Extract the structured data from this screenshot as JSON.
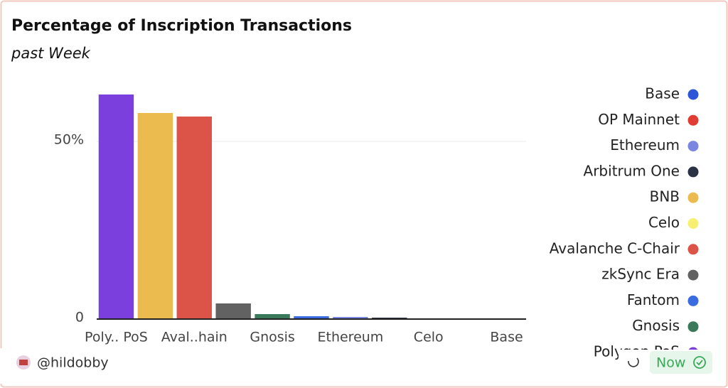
{
  "chart_data": {
    "type": "bar",
    "title": "Percentage of Inscription Transactions",
    "subtitle": "past Week",
    "categories": [
      "Poly.. PoS",
      null,
      "Aval..hain",
      null,
      "Gnosis",
      null,
      "Ethereum",
      null,
      "Celo",
      null,
      "Base"
    ],
    "values": [
      63.2,
      58,
      57,
      4.4,
      1.4,
      0.8,
      0.6,
      0.4,
      0.2,
      0.1,
      0.05
    ],
    "colors": [
      "#7a3fdc",
      "#ecbb4f",
      "#dc5348",
      "#626262",
      "#3a7a5a",
      "#3b6be0",
      "#7b86e0",
      "#2b3244",
      "#f6ef72",
      "#e03c33",
      "#2d55d8"
    ],
    "ylim": [
      0,
      66
    ],
    "yticks": [
      {
        "value": 0,
        "label": "0"
      },
      {
        "value": 50,
        "label": "50%"
      }
    ],
    "grid": true,
    "legend": [
      {
        "name": "Base",
        "color": "#2d55d8"
      },
      {
        "name": "OP Mainnet",
        "color": "#e03c33"
      },
      {
        "name": "Ethereum",
        "color": "#7b86e0"
      },
      {
        "name": "Arbitrum One",
        "color": "#2b3244"
      },
      {
        "name": "BNB",
        "color": "#ecbb4f"
      },
      {
        "name": "Celo",
        "color": "#f6ef72"
      },
      {
        "name": "Avalanche C-Chair",
        "color": "#dc5348"
      },
      {
        "name": "zkSync Era",
        "color": "#626262"
      },
      {
        "name": "Fantom",
        "color": "#3b6be0"
      },
      {
        "name": "Gnosis",
        "color": "#3a7a5a"
      },
      {
        "name": "Polygon PoS",
        "color": "#7a3fdc"
      }
    ],
    "legend_position": "right",
    "author": "@hildobby",
    "badge": "Now"
  }
}
